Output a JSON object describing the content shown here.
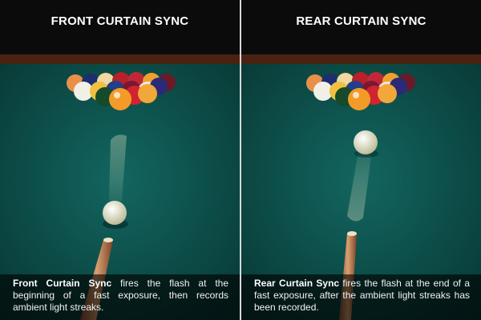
{
  "panels": [
    {
      "title": "FRONT CURTAIN SYNC",
      "caption_bold": "Front Curtain Sync",
      "caption_rest": " fires the flash at the beginning of a fast exposure, then records ambient light streaks."
    },
    {
      "title": "REAR CURTAIN SYNC",
      "caption_bold": "Rear Curtain Sync",
      "caption_rest": " fires the flash at the end of a fast exposure, after the ambient light streaks has been recorded."
    }
  ],
  "colors": {
    "felt": "#0f5a55",
    "felt_dark": "#083d3a",
    "rail": "#5a2a18",
    "cue_ball": "#eeeecf",
    "cue_stick": "#c98a5a"
  }
}
